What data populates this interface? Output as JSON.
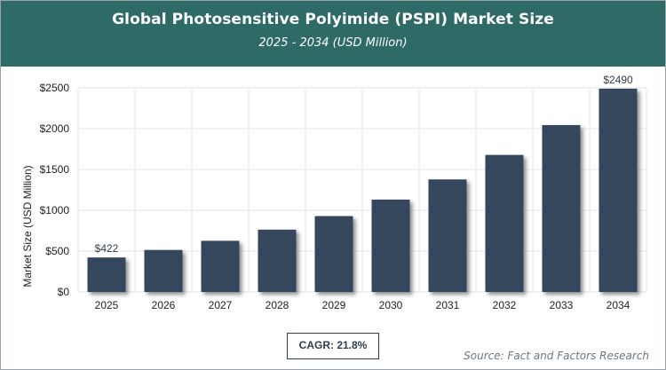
{
  "header": {
    "title": "Global Photosensitive Polyimide (PSPI) Market Size",
    "subtitle": "2025 - 2034 (USD Million)"
  },
  "footer": {
    "cagr": "CAGR: 21.8%",
    "source": "Source: Fact and Factors Research"
  },
  "colors": {
    "header_bg": "#2e6b67",
    "bar": "#36475d",
    "grid": "#e6e6e6"
  },
  "chart_data": {
    "type": "bar",
    "title": "Global Photosensitive Polyimide (PSPI) Market Size",
    "subtitle": "2025 - 2034 (USD Million)",
    "xlabel": "",
    "ylabel": "Market Size (USD Million)",
    "categories": [
      "2025",
      "2026",
      "2027",
      "2028",
      "2029",
      "2030",
      "2031",
      "2032",
      "2033",
      "2034"
    ],
    "values": [
      422,
      514,
      626,
      763,
      929,
      1131,
      1378,
      1678,
      2044,
      2490
    ],
    "ylim": [
      0,
      2500
    ],
    "yticks": [
      0,
      500,
      1000,
      1500,
      2000,
      2500
    ],
    "ytick_labels": [
      "$0",
      "$500",
      "$1000",
      "$1500",
      "$2000",
      "$2500"
    ],
    "data_labels": [
      {
        "index": 0,
        "text": "$422"
      },
      {
        "index": 9,
        "text": "$2490"
      }
    ],
    "grid": true,
    "legend": "none"
  }
}
